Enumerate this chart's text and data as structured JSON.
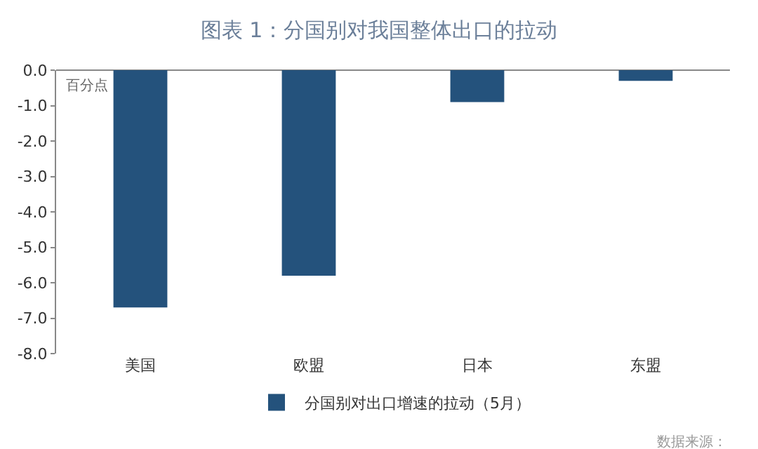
{
  "chart_data": {
    "type": "bar",
    "title": "图表 1：分国别对我国整体出口的拉动",
    "categories": [
      "美国",
      "欧盟",
      "日本",
      "东盟"
    ],
    "series": [
      {
        "name": "分国别对出口增速的拉动（5月）",
        "color": "#24527c",
        "values": [
          -6.7,
          -5.8,
          -0.9,
          -0.3
        ]
      }
    ],
    "ylim": [
      -8,
      0
    ],
    "yticks": [
      {
        "value": 0,
        "label": "0.0"
      },
      {
        "value": -1,
        "label": "-1.0"
      },
      {
        "value": -2,
        "label": "-2.0"
      },
      {
        "value": -3,
        "label": "-3.0"
      },
      {
        "value": -4,
        "label": "-4.0"
      },
      {
        "value": -5,
        "label": "-5.0"
      },
      {
        "value": -6,
        "label": "-6.0"
      },
      {
        "value": -7,
        "label": "-7.0"
      },
      {
        "value": -8,
        "label": "-8.0"
      }
    ],
    "annotations": [
      "百分点",
      "数据来源："
    ],
    "grid": false,
    "legend": "bottom"
  }
}
